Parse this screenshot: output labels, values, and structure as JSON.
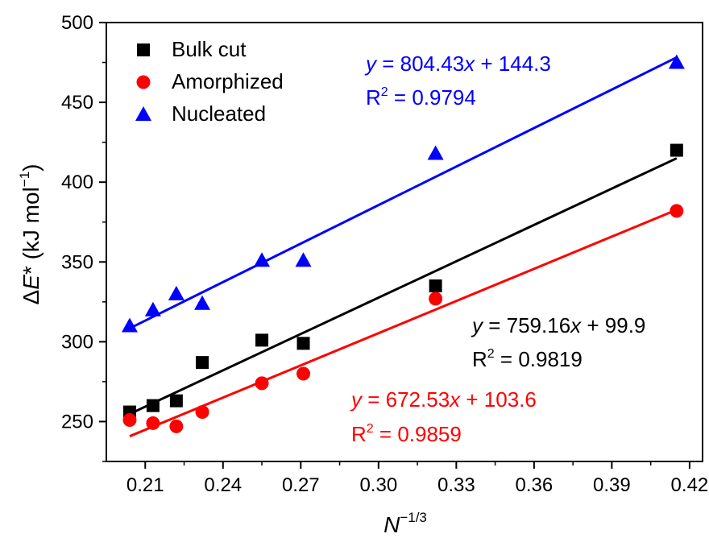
{
  "chart_data": {
    "type": "scatter",
    "title": "",
    "xlabel": {
      "base": "N",
      "sup": "−1/3"
    },
    "ylabel": {
      "prefix": "Δ",
      "italic": "E",
      "star": "*",
      "unit_open": " (kJ mol",
      "unit_sup": "−1",
      "unit_close": ")"
    },
    "xlim": [
      0.195,
      0.425
    ],
    "ylim": [
      225,
      500
    ],
    "xticks": [
      0.21,
      0.24,
      0.27,
      0.3,
      0.33,
      0.36,
      0.39,
      0.42
    ],
    "xtick_labels": [
      "0.21",
      "0.24",
      "0.27",
      "0.30",
      "0.33",
      "0.36",
      "0.39",
      "0.42"
    ],
    "yticks": [
      250,
      300,
      350,
      400,
      450,
      500
    ],
    "ytick_labels": [
      "250",
      "300",
      "350",
      "400",
      "450",
      "500"
    ],
    "grid": false,
    "legend_position": "top-left",
    "series": [
      {
        "name": "Bulk cut",
        "marker": "square",
        "color": "#000000",
        "x": [
          0.204,
          0.213,
          0.222,
          0.232,
          0.255,
          0.271,
          0.322,
          0.415
        ],
        "y": [
          256,
          260,
          263,
          287,
          301,
          299,
          335,
          420
        ],
        "fit": {
          "slope": 759.16,
          "intercept": 99.9,
          "x_range": [
            0.204,
            0.415
          ]
        },
        "equation": {
          "y": "y",
          "eq": " = 759.16",
          "x": "x",
          "rest": " + 99.9",
          "r2_label": "R",
          "r2_sup": "2",
          "r2_value": " = 0.9819"
        }
      },
      {
        "name": "Amorphized",
        "marker": "circle",
        "color": "#ff0000",
        "x": [
          0.204,
          0.213,
          0.222,
          0.232,
          0.255,
          0.271,
          0.322,
          0.415
        ],
        "y": [
          251,
          249,
          247,
          256,
          274,
          280,
          327,
          382
        ],
        "fit": {
          "slope": 672.53,
          "intercept": 103.6,
          "x_range": [
            0.204,
            0.415
          ]
        },
        "equation": {
          "y": "y",
          "eq": " = 672.53",
          "x": "x",
          "rest": " + 103.6",
          "r2_label": "R",
          "r2_sup": "2",
          "r2_value": " = 0.9859"
        }
      },
      {
        "name": "Nucleated",
        "marker": "triangle",
        "color": "#0000ff",
        "x": [
          0.204,
          0.213,
          0.222,
          0.232,
          0.255,
          0.271,
          0.322,
          0.415
        ],
        "y": [
          310,
          320,
          330,
          324,
          351,
          351,
          418,
          475
        ],
        "fit": {
          "slope": 804.43,
          "intercept": 144.3,
          "x_range": [
            0.204,
            0.415
          ]
        },
        "equation": {
          "y": "y",
          "eq": " = 804.43",
          "x": "x",
          "rest": " + 144.3",
          "r2_label": "R",
          "r2_sup": "2",
          "r2_value": " = 0.9794"
        }
      }
    ]
  }
}
